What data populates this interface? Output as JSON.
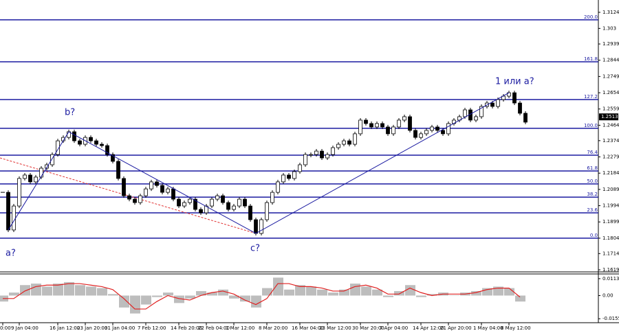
{
  "chart_data": {
    "type": "candlestick",
    "categories": [
      "0:00",
      null,
      null,
      "9 Jan 04:00",
      null,
      null,
      null,
      null,
      null,
      null,
      "16 Jan 12:00",
      null,
      null,
      null,
      null,
      "23 Jan 20:00",
      null,
      null,
      null,
      null,
      "31 Jan 04:00",
      null,
      null,
      null,
      null,
      null,
      "7 Feb 12:00",
      null,
      null,
      null,
      null,
      null,
      "14 Feb 20:00",
      null,
      null,
      null,
      null,
      "22 Feb 04:00",
      null,
      null,
      null,
      null,
      "1 Mar 12:00",
      null,
      null,
      null,
      null,
      null,
      "8 Mar 20:00",
      null,
      null,
      null,
      null,
      null,
      "16 Mar 04:00",
      null,
      null,
      null,
      null,
      "23 Mar 12:00",
      null,
      null,
      null,
      null,
      null,
      "30 Mar 20:00",
      null,
      null,
      null,
      null,
      "7 Apr 04:00",
      null,
      null,
      null,
      null,
      null,
      "14 Apr 12:00",
      null,
      null,
      null,
      null,
      "21 Apr 20:00",
      null,
      null,
      null,
      null,
      null,
      "1 May 04:00",
      null,
      null,
      null,
      null,
      "8 May 12:00",
      null,
      null,
      null
    ],
    "values": [
      1.2072,
      1.1852,
      1.1992,
      1.2153,
      1.2173,
      1.2133,
      1.2161,
      1.2213,
      1.2233,
      1.2293,
      1.2373,
      1.2393,
      1.2426,
      1.2373,
      1.2353,
      1.2393,
      1.2373,
      1.2353,
      1.2345,
      1.2293,
      1.2253,
      1.2153,
      1.2052,
      1.2032,
      1.2012,
      1.2052,
      1.2092,
      1.2133,
      1.2112,
      1.2072,
      1.2092,
      1.2032,
      1.1992,
      1.2012,
      1.2032,
      1.1972,
      1.1952,
      1.1992,
      1.2032,
      1.2052,
      1.2012,
      1.1972,
      1.1992,
      1.2032,
      1.1992,
      1.1912,
      1.1832,
      1.1912,
      1.2012,
      1.2072,
      1.2133,
      1.2173,
      1.2153,
      1.2193,
      1.2233,
      1.2293,
      1.2293,
      1.2313,
      1.2273,
      1.2293,
      1.2333,
      1.2353,
      1.2373,
      1.2353,
      1.2414,
      1.2494,
      1.2474,
      1.2454,
      1.2474,
      1.2454,
      1.2414,
      1.2454,
      1.2494,
      1.2514,
      1.2434,
      1.2393,
      1.2414,
      1.2434,
      1.2454,
      1.2434,
      1.2414,
      1.2474,
      1.2494,
      1.2514,
      1.2554,
      1.2494,
      1.2514,
      1.2574,
      1.2594,
      1.2574,
      1.2614,
      1.2634,
      1.2654,
      1.2594,
      1.2534,
      1.2482
    ],
    "ylim": [
      1.3196,
      1.1611
    ],
    "yticks": [
      1.3124,
      1.303,
      1.2939,
      1.2844,
      1.2749,
      1.2654,
      1.2559,
      1.2464,
      1.2374,
      1.2279,
      1.2184,
      1.2089,
      1.1994,
      1.1899,
      1.1804,
      1.1714,
      1.1619
    ],
    "last_price": 1.2513,
    "fib_levels": [
      {
        "label": "200.0",
        "value": 1.308
      },
      {
        "label": "161.8",
        "value": 1.2835
      },
      {
        "label": "127.2",
        "value": 1.2614
      },
      {
        "label": "100.0",
        "value": 1.2446
      },
      {
        "label": "76.4",
        "value": 1.2289
      },
      {
        "label": "61.8",
        "value": 1.2197
      },
      {
        "label": "50.0",
        "value": 1.2121
      },
      {
        "label": "38.2",
        "value": 1.2044
      },
      {
        "label": "23.6",
        "value": 1.1952
      },
      {
        "label": "0.0",
        "value": 1.1804
      }
    ],
    "channel_line": [
      1.2273,
      1.1832
    ],
    "wave_labels": [
      "a?",
      "b?",
      "c?",
      "1 или a?"
    ],
    "oscillator": {
      "histogram": [
        -0.004,
        0.002,
        0.007,
        0.008,
        0.006,
        0.008,
        0.009,
        0.007,
        0.006,
        0.005,
        0.001,
        -0.008,
        -0.012,
        -0.006,
        -0.001,
        0.002,
        -0.005,
        -0.002,
        0.003,
        0.002,
        0.004,
        -0.002,
        -0.004,
        -0.008,
        0.005,
        0.012,
        0.004,
        0.007,
        0.006,
        0.004,
        0.002,
        0.004,
        0.008,
        0.006,
        0.004,
        -0.001,
        0.003,
        0.007,
        -0.001,
        0.001,
        0.002,
        0,
        0.002,
        0.003,
        0.005,
        0.006,
        0.005,
        -0.004
      ],
      "signal": [
        -0.002,
        -0.002,
        0.003,
        0.006,
        0.007,
        0.007,
        0.008,
        0.008,
        0.007,
        0.006,
        0.004,
        -0.002,
        -0.009,
        -0.009,
        -0.004,
        0,
        -0.002,
        -0.003,
        0,
        0.002,
        0.003,
        0.001,
        -0.003,
        -0.006,
        -0.002,
        0.008,
        0.008,
        0.006,
        0.006,
        0.005,
        0.003,
        0.003,
        0.006,
        0.007,
        0.005,
        0.001,
        0.001,
        0.005,
        0.002,
        0,
        0.001,
        0.001,
        0.001,
        0.002,
        0.004,
        0.005,
        0.005,
        -0.001
      ],
      "ylim": [
        0.014,
        -0.0177
      ],
      "yticks": [
        0.0113,
        {
          "value": 0,
          "label": "0.00"
        },
        -0.0155
      ]
    }
  }
}
